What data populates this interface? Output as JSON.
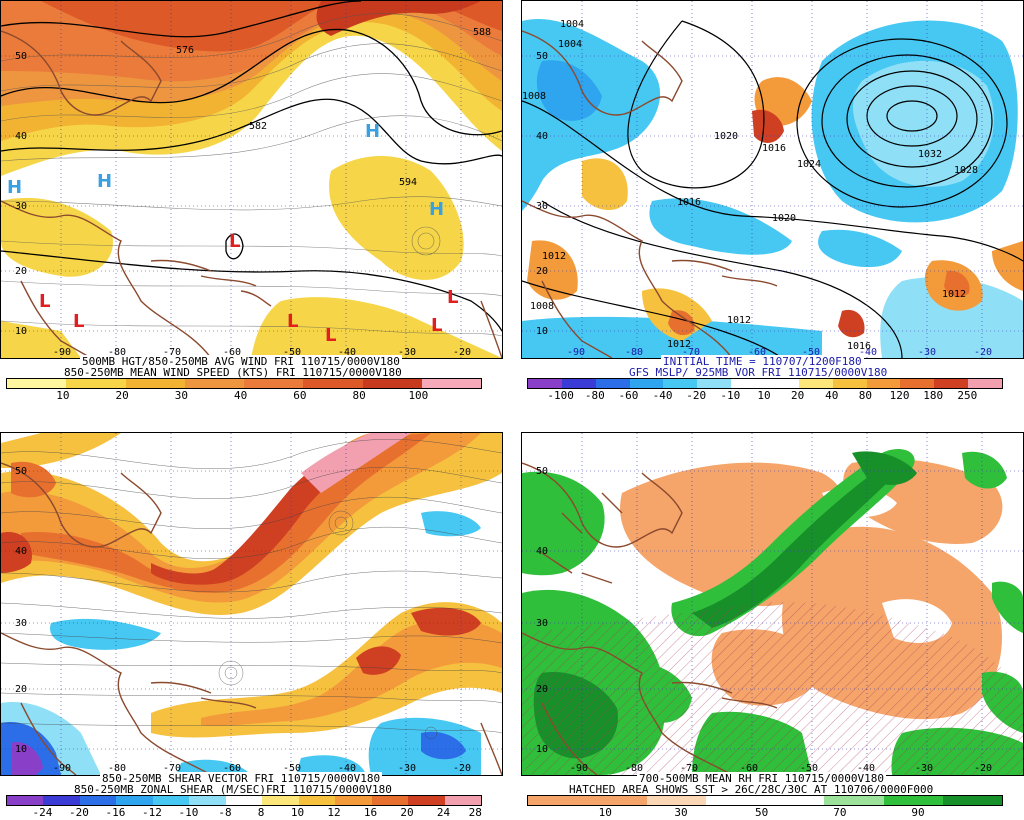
{
  "panels": [
    {
      "id": "top-left",
      "caption1": "500MB HGT/850-250MB AVG WIND FRI 110715/0000V180",
      "caption2": "850-250MB MEAN WIND SPEED (KTS) FRI 110715/0000V180",
      "colorbar": [
        "#fff7a0",
        "#f6d648",
        "#f2b332",
        "#ee9540",
        "#ea7b3a",
        "#dd5a28",
        "#c83a1e",
        "#f6a9b8"
      ],
      "ticks": [
        "10",
        "20",
        "30",
        "40",
        "60",
        "80",
        "100"
      ],
      "lat_labels": [
        "50",
        "40",
        "30",
        "20",
        "10"
      ],
      "lon_labels": [
        "-90",
        "-80",
        "-70",
        "-60",
        "-50",
        "-40",
        "-30",
        "-20"
      ],
      "contour_labels": [
        "576",
        "582",
        "588",
        "594"
      ],
      "highs": [
        "H",
        "H",
        "H",
        "H"
      ],
      "lows": [
        "L",
        "L",
        "L",
        "L",
        "L",
        "L",
        "L"
      ]
    },
    {
      "id": "top-right",
      "caption1": "INITIAL TIME = 110707/1200F180",
      "caption2": "GFS MSLP/ 925MB VOR FRI 110715/0000V180",
      "colorbar": [
        "#8a3fc9",
        "#3b3bd6",
        "#2b6ee8",
        "#2fa4ef",
        "#47c8f2",
        "#8fe0f7",
        "#ffffff",
        "#ffffff",
        "#fde67a",
        "#f6c13f",
        "#f39a3b",
        "#e8702e",
        "#cf3f22",
        "#f2a0b0"
      ],
      "ticks": [
        "-100",
        "-80",
        "-60",
        "-40",
        "-20",
        "-10",
        "10",
        "20",
        "40",
        "80",
        "120",
        "180",
        "250"
      ],
      "lat_labels": [
        "50",
        "40",
        "30",
        "20",
        "10"
      ],
      "lon_labels": [
        "-90",
        "-80",
        "-70",
        "-60",
        "-50",
        "-40",
        "-30",
        "-20"
      ],
      "contour_labels": [
        "1004",
        "1004",
        "1008",
        "1020",
        "1016",
        "1016",
        "1012",
        "1008",
        "1024",
        "1020",
        "1032",
        "1028",
        "1012",
        "1012",
        "1012",
        "1016"
      ]
    },
    {
      "id": "bottom-left",
      "caption1": "850-250MB SHEAR VECTOR FRI 110715/0000V180",
      "caption2": "850-250MB ZONAL SHEAR (M/SEC)FRI 110715/0000V180",
      "colorbar": [
        "#8a3fc9",
        "#3b3bd6",
        "#2b6ee8",
        "#2fa4ef",
        "#47c8f2",
        "#8fe0f7",
        "#ffffff",
        "#fde67a",
        "#f6c13f",
        "#f39a3b",
        "#e8702e",
        "#cf3f22",
        "#f2a0b0"
      ],
      "ticks": [
        "-24",
        "-20",
        "-16",
        "-12",
        "-10",
        "-8",
        "8",
        "10",
        "12",
        "16",
        "20",
        "24",
        "28"
      ],
      "lat_labels": [
        "50",
        "40",
        "30",
        "20",
        "10"
      ],
      "lon_labels": [
        "-90",
        "-80",
        "-70",
        "-60",
        "-50",
        "-40",
        "-30",
        "-20"
      ]
    },
    {
      "id": "bottom-right",
      "caption1": "700-500MB MEAN RH FRI 110715/0000V180",
      "caption2": "HATCHED AREA SHOWS SST > 26C/28C/30C AT 110706/0000F000",
      "colorbar": [
        "#f5a46a",
        "#f5a46a",
        "#fbd7b5",
        "#ffffff",
        "#ffffff",
        "#9de29a",
        "#2fbf3a",
        "#18902a"
      ],
      "ticks": [
        "10",
        "30",
        "50",
        "70",
        "90"
      ],
      "lat_labels": [
        "50",
        "40",
        "30",
        "20",
        "10"
      ],
      "lon_labels": [
        "-90",
        "-80",
        "-70",
        "-60",
        "-50",
        "-40",
        "-30",
        "-20"
      ]
    }
  ]
}
